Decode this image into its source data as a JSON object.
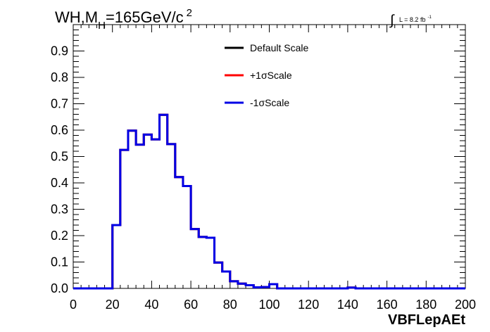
{
  "chart_data": {
    "type": "line",
    "drawstyle": "steps",
    "title": "WH,M_H=165GeV/c^2",
    "title_parts": {
      "main": "WH,M",
      "sub": "H",
      "rest": "=165GeV/c",
      "sup": "2"
    },
    "lumi_label": {
      "integral": "∫",
      "text": "L = 8.2 fb",
      "sup": "-1"
    },
    "xlabel": "VBFLepAEt",
    "ylabel": "",
    "xlim": [
      0,
      200
    ],
    "ylim": [
      0,
      1.0
    ],
    "grid": false,
    "legend_position": "top-center",
    "x_ticks": [
      0,
      20,
      40,
      60,
      80,
      100,
      120,
      140,
      160,
      180,
      200
    ],
    "y_ticks": [
      0.0,
      0.1,
      0.2,
      0.3,
      0.4,
      0.5,
      0.6,
      0.7,
      0.8,
      0.9
    ],
    "x_tick_labels": [
      "0",
      "20",
      "40",
      "60",
      "80",
      "100",
      "120",
      "140",
      "160",
      "180",
      "200"
    ],
    "y_tick_labels": [
      "0.0",
      "0.1",
      "0.2",
      "0.3",
      "0.4",
      "0.5",
      "0.6",
      "0.7",
      "0.8",
      "0.9"
    ],
    "bin_edges": [
      0,
      4,
      8,
      12,
      16,
      20,
      24,
      28,
      32,
      36,
      40,
      44,
      48,
      52,
      56,
      60,
      64,
      68,
      72,
      76,
      80,
      84,
      88,
      92,
      96,
      100,
      104,
      108,
      112,
      116,
      120,
      124,
      128,
      132,
      136,
      140,
      144,
      148,
      152,
      156,
      160,
      164,
      168,
      172,
      176,
      180,
      184,
      188,
      192,
      196,
      200
    ],
    "series": [
      {
        "name": "Default Scale",
        "color": "#000000",
        "values": [
          0,
          0,
          0,
          0,
          0,
          0.24,
          0.525,
          0.598,
          0.545,
          0.583,
          0.565,
          0.658,
          0.547,
          0.422,
          0.388,
          0.225,
          0.195,
          0.192,
          0.098,
          0.064,
          0.027,
          0.018,
          0.012,
          0.004,
          0.005,
          0.016,
          0,
          0,
          0,
          0,
          0,
          0,
          0,
          0,
          0,
          0.003,
          0,
          0,
          0,
          0,
          0,
          0,
          0,
          0,
          0,
          0,
          0,
          0,
          0,
          0
        ]
      },
      {
        "name": "+1σScale",
        "color": "#ff0000",
        "values": [
          0,
          0,
          0,
          0,
          0,
          0.24,
          0.525,
          0.598,
          0.545,
          0.583,
          0.565,
          0.658,
          0.547,
          0.422,
          0.388,
          0.225,
          0.195,
          0.192,
          0.098,
          0.064,
          0.027,
          0.018,
          0.012,
          0.004,
          0.005,
          0.016,
          0,
          0,
          0,
          0,
          0,
          0,
          0,
          0,
          0,
          0.003,
          0,
          0,
          0,
          0,
          0,
          0,
          0,
          0,
          0,
          0,
          0,
          0,
          0,
          0
        ]
      },
      {
        "name": "-1σScale",
        "color": "#0000e6",
        "values": [
          0,
          0,
          0,
          0,
          0,
          0.24,
          0.525,
          0.598,
          0.545,
          0.583,
          0.565,
          0.658,
          0.547,
          0.422,
          0.388,
          0.225,
          0.195,
          0.192,
          0.098,
          0.064,
          0.027,
          0.018,
          0.012,
          0.004,
          0.005,
          0.016,
          0,
          0,
          0,
          0,
          0,
          0,
          0,
          0,
          0,
          0.003,
          0,
          0,
          0,
          0,
          0,
          0,
          0,
          0,
          0,
          0,
          0,
          0,
          0,
          0
        ]
      }
    ]
  }
}
